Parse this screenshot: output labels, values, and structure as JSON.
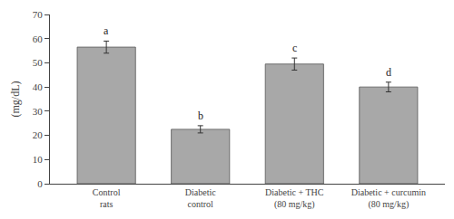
{
  "chart_data": {
    "type": "bar",
    "categories": [
      "Control\nrats",
      "Diabetic\ncontrol",
      "Diabetic + THC\n(80 mg/kg)",
      "Diabetic + curcumin\n(80 mg/kg)"
    ],
    "values": [
      56.5,
      22.5,
      49.5,
      40.0
    ],
    "errors": [
      2.5,
      1.5,
      2.5,
      2.0
    ],
    "annotations": [
      "a",
      "b",
      "c",
      "d"
    ],
    "color": "#a8a8a8",
    "ylabel": "(mg/dL)",
    "ylim": [
      0,
      70
    ],
    "yticks": [
      0,
      10,
      20,
      30,
      40,
      50,
      60,
      70
    ],
    "grid": false
  }
}
